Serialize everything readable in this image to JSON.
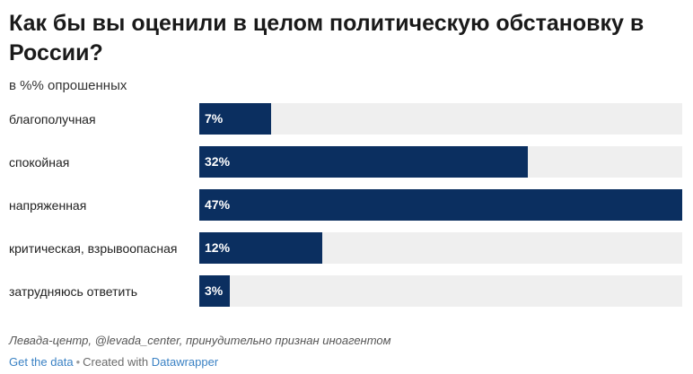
{
  "title": "Как бы вы оценили в целом политическую обстановку в России?",
  "subtitle": "в %% опрошенных",
  "chart_data": {
    "type": "bar",
    "orientation": "horizontal",
    "categories": [
      "благополучная",
      "спокойная",
      "напряженная",
      "критическая, взрывоопасная",
      "затрудняюсь ответить"
    ],
    "values": [
      7,
      32,
      47,
      12,
      3
    ],
    "value_labels": [
      "7%",
      "32%",
      "47%",
      "12%",
      "3%"
    ],
    "xlim": [
      0,
      47
    ],
    "bar_color": "#0b2f60",
    "track_color": "#efefef"
  },
  "source": "Левада-центр, @levada_center, принудительно признан иноагентом",
  "footer": {
    "get_data": "Get the data",
    "separator": "•",
    "created_with": "Created with",
    "tool": "Datawrapper"
  }
}
